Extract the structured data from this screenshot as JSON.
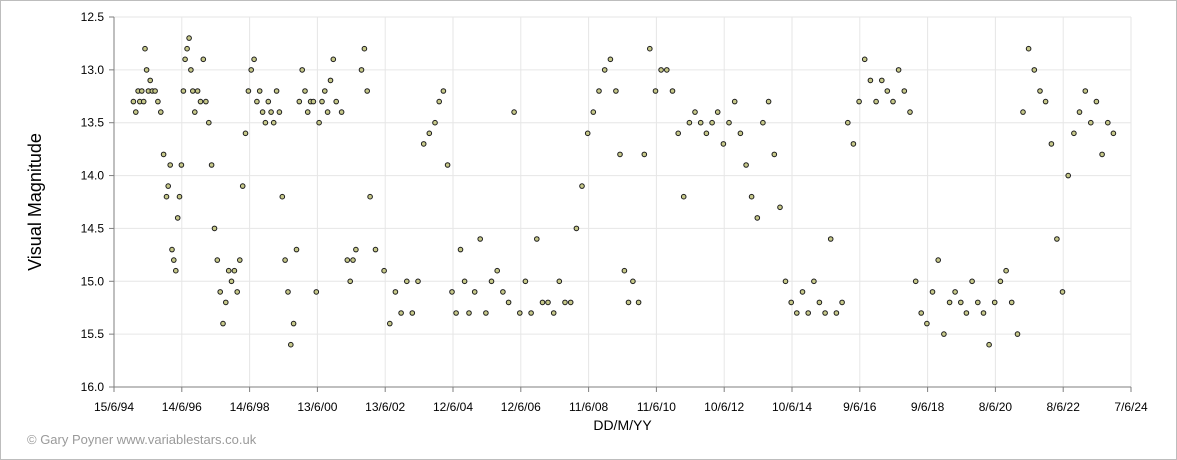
{
  "footer": {
    "credit": "© Gary Poyner www.variablestars.co.uk"
  },
  "colors": {
    "point_fill": "#c7c98a",
    "point_stroke": "#1c1c1c",
    "grid": "#e6e6e6",
    "axis": "#7f7f7f"
  },
  "chart_data": {
    "type": "scatter",
    "title": "",
    "xlabel": "DD/M/YY",
    "ylabel": "Visual Magnitude",
    "y_inverted": true,
    "ylim": [
      12.5,
      16.0
    ],
    "y_ticks": [
      "12.5",
      "13.0",
      "13.5",
      "14.0",
      "14.5",
      "15.0",
      "15.5",
      "16.0"
    ],
    "xlim": [
      "1994-06-15",
      "2024-06-07"
    ],
    "x_ticks": [
      "15/6/94",
      "14/6/96",
      "14/6/98",
      "13/6/00",
      "13/6/02",
      "12/6/04",
      "12/6/06",
      "11/6/08",
      "11/6/10",
      "10/6/12",
      "10/6/14",
      "9/6/16",
      "9/6/18",
      "8/6/20",
      "8/6/22",
      "7/6/24"
    ],
    "grid": true,
    "legend": "none",
    "points": [
      [
        "1995-01-10",
        13.3
      ],
      [
        "1995-02-05",
        13.4
      ],
      [
        "1995-03-01",
        13.2
      ],
      [
        "1995-03-20",
        13.3
      ],
      [
        "1995-04-10",
        13.2
      ],
      [
        "1995-05-01",
        13.3
      ],
      [
        "1995-05-15",
        12.8
      ],
      [
        "1995-06-01",
        13.0
      ],
      [
        "1995-06-20",
        13.2
      ],
      [
        "1995-07-10",
        13.1
      ],
      [
        "1995-08-01",
        13.2
      ],
      [
        "1995-09-01",
        13.2
      ],
      [
        "1995-10-01",
        13.3
      ],
      [
        "1995-11-01",
        13.4
      ],
      [
        "1995-12-01",
        13.8
      ],
      [
        "1996-01-01",
        14.2
      ],
      [
        "1996-01-20",
        14.1
      ],
      [
        "1996-02-10",
        13.9
      ],
      [
        "1996-03-01",
        14.7
      ],
      [
        "1996-03-20",
        14.8
      ],
      [
        "1996-04-10",
        14.9
      ],
      [
        "1996-05-01",
        14.4
      ],
      [
        "1996-05-20",
        14.2
      ],
      [
        "1996-06-10",
        13.9
      ],
      [
        "1996-07-01",
        13.2
      ],
      [
        "1996-07-20",
        12.9
      ],
      [
        "1996-08-10",
        12.8
      ],
      [
        "1996-09-01",
        12.7
      ],
      [
        "1996-09-20",
        13.0
      ],
      [
        "1996-10-10",
        13.2
      ],
      [
        "1996-11-01",
        13.4
      ],
      [
        "1996-12-01",
        13.2
      ],
      [
        "1997-01-01",
        13.3
      ],
      [
        "1997-02-01",
        12.9
      ],
      [
        "1997-03-01",
        13.3
      ],
      [
        "1997-04-01",
        13.5
      ],
      [
        "1997-05-01",
        13.9
      ],
      [
        "1997-06-01",
        14.5
      ],
      [
        "1997-07-01",
        14.8
      ],
      [
        "1997-08-01",
        15.1
      ],
      [
        "1997-09-01",
        15.4
      ],
      [
        "1997-10-01",
        15.2
      ],
      [
        "1997-11-01",
        14.9
      ],
      [
        "1997-12-01",
        15.0
      ],
      [
        "1998-01-01",
        14.9
      ],
      [
        "1998-02-01",
        15.1
      ],
      [
        "1998-03-01",
        14.8
      ],
      [
        "1998-04-01",
        14.1
      ],
      [
        "1998-05-01",
        13.6
      ],
      [
        "1998-06-01",
        13.2
      ],
      [
        "1998-07-01",
        13.0
      ],
      [
        "1998-08-01",
        12.9
      ],
      [
        "1998-09-01",
        13.3
      ],
      [
        "1998-10-01",
        13.2
      ],
      [
        "1998-11-01",
        13.4
      ],
      [
        "1998-12-01",
        13.5
      ],
      [
        "1999-01-01",
        13.3
      ],
      [
        "1999-02-01",
        13.4
      ],
      [
        "1999-03-01",
        13.5
      ],
      [
        "1999-04-01",
        13.2
      ],
      [
        "1999-05-01",
        13.4
      ],
      [
        "1999-06-01",
        14.2
      ],
      [
        "1999-07-01",
        14.8
      ],
      [
        "1999-08-01",
        15.1
      ],
      [
        "1999-09-01",
        15.6
      ],
      [
        "1999-10-01",
        15.4
      ],
      [
        "1999-11-01",
        14.7
      ],
      [
        "1999-12-01",
        13.3
      ],
      [
        "2000-01-01",
        13.0
      ],
      [
        "2000-02-01",
        13.2
      ],
      [
        "2000-03-01",
        13.4
      ],
      [
        "2000-04-01",
        13.3
      ],
      [
        "2000-05-01",
        13.3
      ],
      [
        "2000-06-01",
        15.1
      ],
      [
        "2000-07-01",
        13.5
      ],
      [
        "2000-08-01",
        13.3
      ],
      [
        "2000-09-01",
        13.2
      ],
      [
        "2000-10-01",
        13.4
      ],
      [
        "2000-11-01",
        13.1
      ],
      [
        "2000-12-01",
        12.9
      ],
      [
        "2001-01-01",
        13.3
      ],
      [
        "2001-03-01",
        13.4
      ],
      [
        "2001-05-01",
        14.8
      ],
      [
        "2001-06-01",
        15.0
      ],
      [
        "2001-07-01",
        14.8
      ],
      [
        "2001-08-01",
        14.7
      ],
      [
        "2001-10-01",
        13.0
      ],
      [
        "2001-11-01",
        12.8
      ],
      [
        "2001-12-01",
        13.2
      ],
      [
        "2002-01-01",
        14.2
      ],
      [
        "2002-03-01",
        14.7
      ],
      [
        "2002-06-01",
        14.9
      ],
      [
        "2002-08-01",
        15.4
      ],
      [
        "2002-10-01",
        15.1
      ],
      [
        "2002-12-01",
        15.3
      ],
      [
        "2003-02-01",
        15.0
      ],
      [
        "2003-04-01",
        15.3
      ],
      [
        "2003-06-01",
        15.0
      ],
      [
        "2003-08-01",
        13.7
      ],
      [
        "2003-10-01",
        13.6
      ],
      [
        "2003-12-01",
        13.5
      ],
      [
        "2004-01-15",
        13.3
      ],
      [
        "2004-03-01",
        13.2
      ],
      [
        "2004-04-15",
        13.9
      ],
      [
        "2004-06-01",
        15.1
      ],
      [
        "2004-07-15",
        15.3
      ],
      [
        "2004-09-01",
        14.7
      ],
      [
        "2004-10-15",
        15.0
      ],
      [
        "2004-12-01",
        15.3
      ],
      [
        "2005-02-01",
        15.1
      ],
      [
        "2005-04-01",
        14.6
      ],
      [
        "2005-06-01",
        15.3
      ],
      [
        "2005-08-01",
        15.0
      ],
      [
        "2005-10-01",
        14.9
      ],
      [
        "2005-12-01",
        15.1
      ],
      [
        "2006-02-01",
        15.2
      ],
      [
        "2006-04-01",
        13.4
      ],
      [
        "2006-06-01",
        15.3
      ],
      [
        "2006-08-01",
        15.0
      ],
      [
        "2006-10-01",
        15.3
      ],
      [
        "2006-12-01",
        14.6
      ],
      [
        "2007-02-01",
        15.2
      ],
      [
        "2007-04-01",
        15.2
      ],
      [
        "2007-06-01",
        15.3
      ],
      [
        "2007-08-01",
        15.0
      ],
      [
        "2007-10-01",
        15.2
      ],
      [
        "2007-12-01",
        15.2
      ],
      [
        "2008-02-01",
        14.5
      ],
      [
        "2008-04-01",
        14.1
      ],
      [
        "2008-06-01",
        13.6
      ],
      [
        "2008-08-01",
        13.4
      ],
      [
        "2008-10-01",
        13.2
      ],
      [
        "2008-12-01",
        13.0
      ],
      [
        "2009-02-01",
        12.9
      ],
      [
        "2009-04-01",
        13.2
      ],
      [
        "2009-05-15",
        13.8
      ],
      [
        "2009-07-01",
        14.9
      ],
      [
        "2009-08-15",
        15.2
      ],
      [
        "2009-10-01",
        15.0
      ],
      [
        "2009-12-01",
        15.2
      ],
      [
        "2010-02-01",
        13.8
      ],
      [
        "2010-04-01",
        12.8
      ],
      [
        "2010-06-01",
        13.2
      ],
      [
        "2010-08-01",
        13.0
      ],
      [
        "2010-10-01",
        13.0
      ],
      [
        "2010-12-01",
        13.2
      ],
      [
        "2011-02-01",
        13.6
      ],
      [
        "2011-04-01",
        14.2
      ],
      [
        "2011-06-01",
        13.5
      ],
      [
        "2011-08-01",
        13.4
      ],
      [
        "2011-10-01",
        13.5
      ],
      [
        "2011-12-01",
        13.6
      ],
      [
        "2012-02-01",
        13.5
      ],
      [
        "2012-04-01",
        13.4
      ],
      [
        "2012-06-01",
        13.7
      ],
      [
        "2012-08-01",
        13.5
      ],
      [
        "2012-10-01",
        13.3
      ],
      [
        "2012-12-01",
        13.6
      ],
      [
        "2013-02-01",
        13.9
      ],
      [
        "2013-04-01",
        14.2
      ],
      [
        "2013-06-01",
        14.4
      ],
      [
        "2013-08-01",
        13.5
      ],
      [
        "2013-10-01",
        13.3
      ],
      [
        "2013-12-01",
        13.8
      ],
      [
        "2014-02-01",
        14.3
      ],
      [
        "2014-04-01",
        15.0
      ],
      [
        "2014-06-01",
        15.2
      ],
      [
        "2014-08-01",
        15.3
      ],
      [
        "2014-10-01",
        15.1
      ],
      [
        "2014-12-01",
        15.3
      ],
      [
        "2015-02-01",
        15.0
      ],
      [
        "2015-04-01",
        15.2
      ],
      [
        "2015-06-01",
        15.3
      ],
      [
        "2015-08-01",
        14.6
      ],
      [
        "2015-10-01",
        15.3
      ],
      [
        "2015-12-01",
        15.2
      ],
      [
        "2016-02-01",
        13.5
      ],
      [
        "2016-04-01",
        13.7
      ],
      [
        "2016-06-01",
        13.3
      ],
      [
        "2016-08-01",
        12.9
      ],
      [
        "2016-10-01",
        13.1
      ],
      [
        "2016-12-01",
        13.3
      ],
      [
        "2017-02-01",
        13.1
      ],
      [
        "2017-04-01",
        13.2
      ],
      [
        "2017-06-01",
        13.3
      ],
      [
        "2017-08-01",
        13.0
      ],
      [
        "2017-10-01",
        13.2
      ],
      [
        "2017-12-01",
        13.4
      ],
      [
        "2018-02-01",
        15.0
      ],
      [
        "2018-04-01",
        15.3
      ],
      [
        "2018-06-01",
        15.4
      ],
      [
        "2018-08-01",
        15.1
      ],
      [
        "2018-10-01",
        14.8
      ],
      [
        "2018-12-01",
        15.5
      ],
      [
        "2019-02-01",
        15.2
      ],
      [
        "2019-04-01",
        15.1
      ],
      [
        "2019-06-01",
        15.2
      ],
      [
        "2019-08-01",
        15.3
      ],
      [
        "2019-10-01",
        15.0
      ],
      [
        "2019-12-01",
        15.2
      ],
      [
        "2020-02-01",
        15.3
      ],
      [
        "2020-04-01",
        15.6
      ],
      [
        "2020-06-01",
        15.2
      ],
      [
        "2020-08-01",
        15.0
      ],
      [
        "2020-10-01",
        14.9
      ],
      [
        "2020-12-01",
        15.2
      ],
      [
        "2021-02-01",
        15.5
      ],
      [
        "2021-04-01",
        13.4
      ],
      [
        "2021-06-01",
        12.8
      ],
      [
        "2021-08-01",
        13.0
      ],
      [
        "2021-10-01",
        13.2
      ],
      [
        "2021-12-01",
        13.3
      ],
      [
        "2022-02-01",
        13.7
      ],
      [
        "2022-04-01",
        14.6
      ],
      [
        "2022-06-01",
        15.1
      ],
      [
        "2022-08-01",
        14.0
      ],
      [
        "2022-10-01",
        13.6
      ],
      [
        "2022-12-01",
        13.4
      ],
      [
        "2023-02-01",
        13.2
      ],
      [
        "2023-04-01",
        13.5
      ],
      [
        "2023-06-01",
        13.3
      ],
      [
        "2023-08-01",
        13.8
      ],
      [
        "2023-10-01",
        13.5
      ],
      [
        "2023-12-01",
        13.6
      ]
    ]
  }
}
